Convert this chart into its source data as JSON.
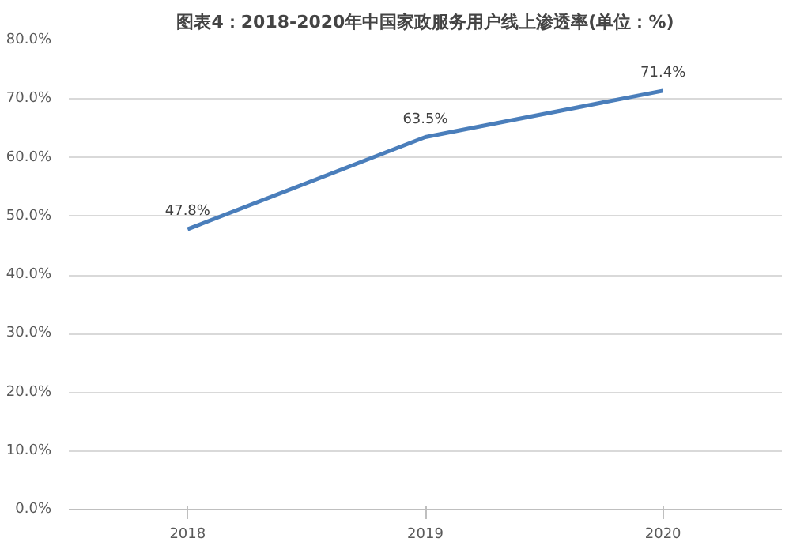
{
  "chart_data": {
    "type": "line",
    "title": "图表4：2018-2020年中国家政服务用户线上渗透率(单位：%)",
    "categories": [
      "2018",
      "2019",
      "2020"
    ],
    "series": [
      {
        "color": "#4a7ebb",
        "values": [
          47.8,
          63.5,
          71.4
        ],
        "value_labels": [
          "47.8%",
          "63.5%",
          "71.4%"
        ]
      }
    ],
    "ylim": [
      0,
      80
    ],
    "yticks": [
      {
        "value": 0,
        "label": "0.0%"
      },
      {
        "value": 10,
        "label": "10.0%"
      },
      {
        "value": 20,
        "label": "20.0%"
      },
      {
        "value": 30,
        "label": "30.0%"
      },
      {
        "value": 40,
        "label": "40.0%"
      },
      {
        "value": 50,
        "label": "50.0%"
      },
      {
        "value": 60,
        "label": "60.0%"
      },
      {
        "value": 70,
        "label": "70.0%"
      },
      {
        "value": 80,
        "label": "80.0%"
      }
    ],
    "grid": "y",
    "marker": "none",
    "line_style": "solid"
  }
}
